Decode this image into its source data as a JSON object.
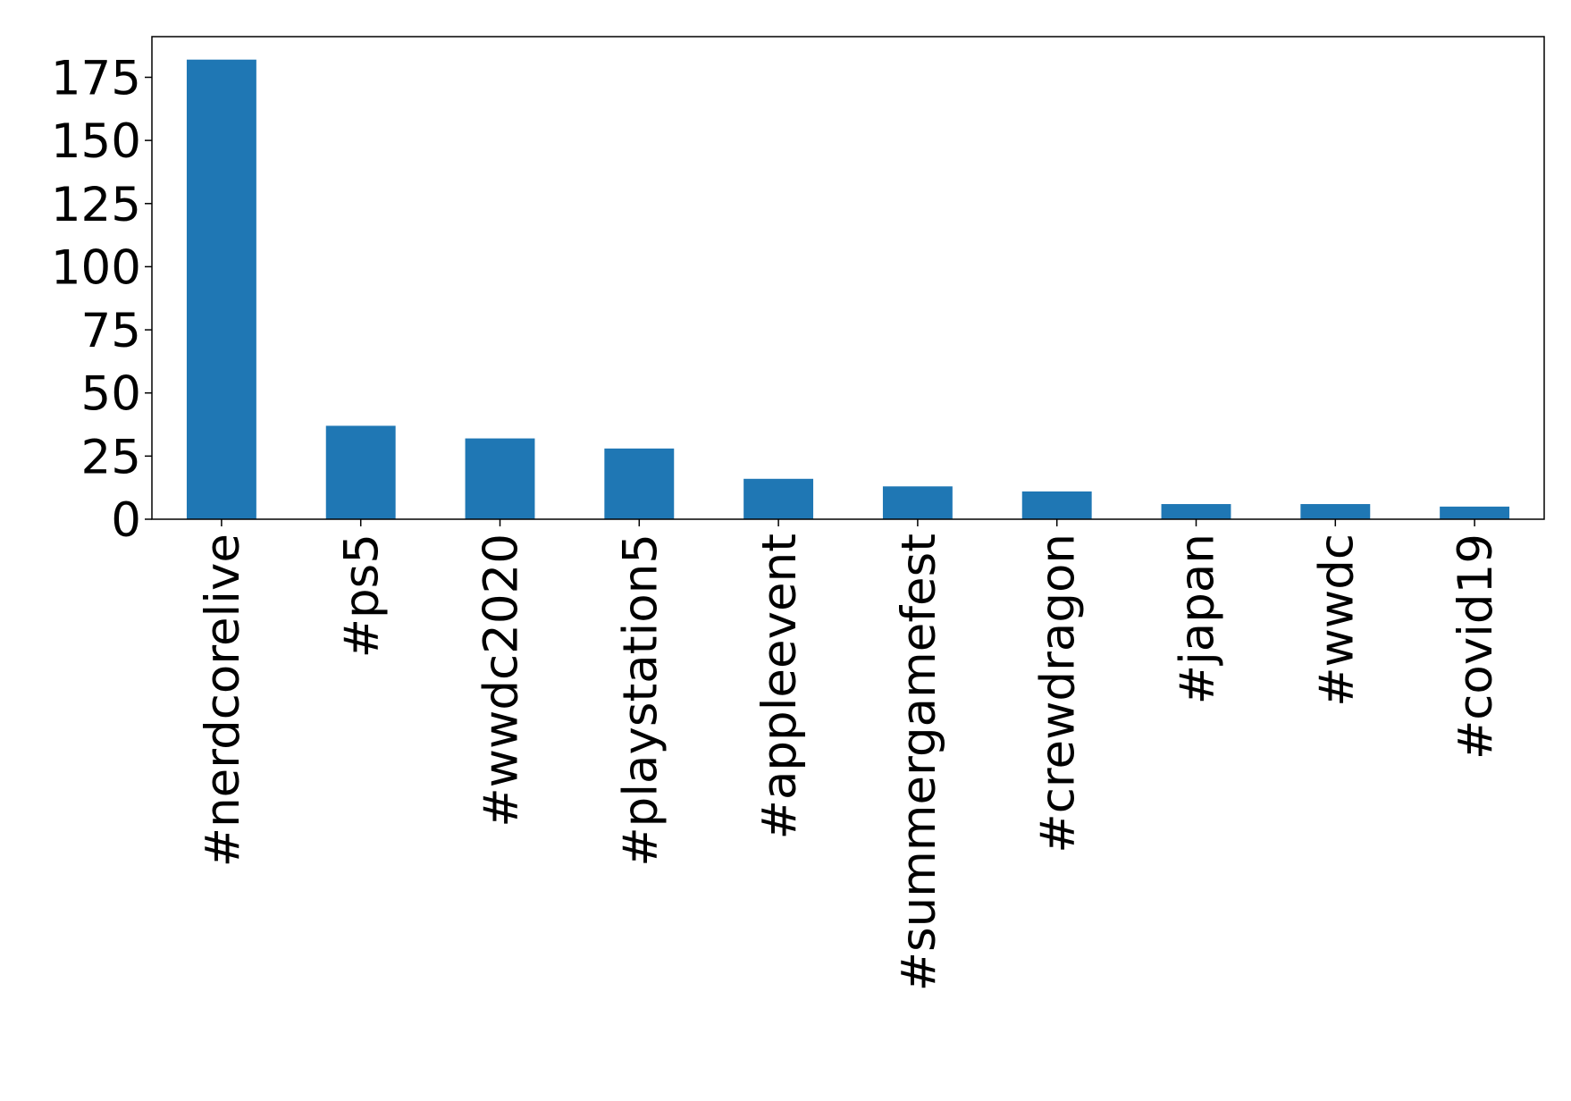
{
  "chart_data": {
    "type": "bar",
    "categories": [
      "#nerdcorelive",
      "#ps5",
      "#wwdc2020",
      "#playstation5",
      "#appleevent",
      "#summergamefest",
      "#crewdragon",
      "#japan",
      "#wwdc",
      "#covid19"
    ],
    "values": [
      182,
      37,
      32,
      28,
      16,
      13,
      11,
      6,
      6,
      5
    ],
    "color": "#1f77b4",
    "ylim": [
      0,
      191.1
    ],
    "yticks": [
      0,
      25,
      50,
      75,
      100,
      125,
      150,
      175
    ]
  }
}
